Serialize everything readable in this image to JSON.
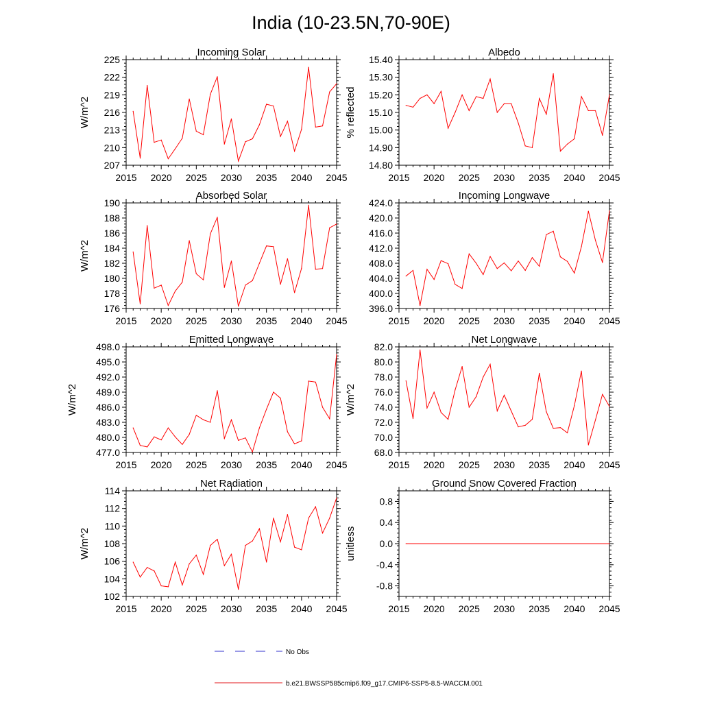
{
  "figure": {
    "title": "India (10-23.5N,70-90E)"
  },
  "legend": {
    "items": [
      {
        "label": "No Obs",
        "color": "#3333cc",
        "dash": true
      },
      {
        "label": "b.e21.BWSSP585cmip6.f09_g17.CMIP6-SSP5-8.5-WACCM.001",
        "color": "#e31a1c",
        "dash": false
      }
    ]
  },
  "colors": {
    "series": "#ff0000",
    "obs": "#3333cc"
  },
  "chart_data": [
    {
      "type": "line",
      "title": "Incoming Solar",
      "ylabel": "W/m^2",
      "xlim": [
        2015,
        2045
      ],
      "ylim": [
        207,
        225
      ],
      "xticks": [
        "2015",
        "2020",
        "2025",
        "2030",
        "2035",
        "2040",
        "2045"
      ],
      "yticks": [
        "207",
        "210",
        "213",
        "216",
        "219",
        "222",
        "225"
      ],
      "x": [
        2016,
        2017,
        2018,
        2019,
        2020,
        2021,
        2022,
        2023,
        2024,
        2025,
        2026,
        2027,
        2028,
        2029,
        2030,
        2031,
        2032,
        2033,
        2034,
        2035,
        2036,
        2037,
        2038,
        2039,
        2040,
        2041,
        2042,
        2043,
        2044,
        2045
      ],
      "series": [
        {
          "name": "b.e21.BWSSP585cmip6.f09_g17.CMIP6-SSP5-8.5-WACCM.001",
          "values": [
            216.2,
            208.2,
            220.6,
            210.9,
            211.3,
            208.1,
            209.8,
            211.6,
            218.3,
            212.8,
            212.2,
            219.1,
            222.1,
            210.6,
            214.9,
            207.7,
            211.0,
            211.5,
            213.9,
            217.4,
            217.1,
            211.9,
            214.5,
            209.4,
            213.1,
            223.7,
            213.5,
            213.7,
            219.5,
            220.9
          ]
        }
      ]
    },
    {
      "type": "line",
      "title": "Albedo",
      "ylabel": "% reflected",
      "xlim": [
        2015,
        2045
      ],
      "ylim": [
        14.8,
        15.4
      ],
      "xticks": [
        "2015",
        "2020",
        "2025",
        "2030",
        "2035",
        "2040",
        "2045"
      ],
      "yticks": [
        "14.80",
        "14.90",
        "15.00",
        "15.10",
        "15.20",
        "15.30",
        "15.40"
      ],
      "x": [
        2016,
        2017,
        2018,
        2019,
        2020,
        2021,
        2022,
        2023,
        2024,
        2025,
        2026,
        2027,
        2028,
        2029,
        2030,
        2031,
        2032,
        2033,
        2034,
        2035,
        2036,
        2037,
        2038,
        2039,
        2040,
        2041,
        2042,
        2043,
        2044,
        2045
      ],
      "series": [
        {
          "name": "b.e21.BWSSP585cmip6.f09_g17.CMIP6-SSP5-8.5-WACCM.001",
          "values": [
            15.14,
            15.13,
            15.18,
            15.2,
            15.15,
            15.22,
            15.01,
            15.1,
            15.2,
            15.11,
            15.19,
            15.18,
            15.29,
            15.1,
            15.15,
            15.15,
            15.04,
            14.91,
            14.9,
            15.18,
            15.09,
            15.32,
            14.88,
            14.92,
            14.95,
            15.19,
            15.11,
            15.11,
            14.97,
            15.2
          ]
        }
      ]
    },
    {
      "type": "line",
      "title": "Absorbed Solar",
      "ylabel": "W/m^2",
      "xlim": [
        2015,
        2045
      ],
      "ylim": [
        176,
        190
      ],
      "xticks": [
        "2015",
        "2020",
        "2025",
        "2030",
        "2035",
        "2040",
        "2045"
      ],
      "yticks": [
        "176",
        "178",
        "180",
        "182",
        "184",
        "186",
        "188",
        "190"
      ],
      "x": [
        2016,
        2017,
        2018,
        2019,
        2020,
        2021,
        2022,
        2023,
        2024,
        2025,
        2026,
        2027,
        2028,
        2029,
        2030,
        2031,
        2032,
        2033,
        2034,
        2035,
        2036,
        2037,
        2038,
        2039,
        2040,
        2041,
        2042,
        2043,
        2044,
        2045
      ],
      "series": [
        {
          "name": "b.e21.BWSSP585cmip6.f09_g17.CMIP6-SSP5-8.5-WACCM.001",
          "values": [
            183.5,
            176.6,
            187.0,
            178.7,
            179.1,
            176.4,
            178.3,
            179.5,
            185.0,
            180.6,
            179.8,
            185.9,
            188.1,
            178.8,
            182.3,
            176.3,
            179.1,
            179.7,
            182.0,
            184.3,
            184.2,
            179.2,
            182.6,
            178.1,
            181.3,
            189.7,
            181.2,
            181.3,
            186.7,
            187.2
          ]
        }
      ]
    },
    {
      "type": "line",
      "title": "Incoming Longwave",
      "ylabel": "",
      "xlim": [
        2015,
        2045
      ],
      "ylim": [
        396.0,
        424.0
      ],
      "xticks": [
        "2015",
        "2020",
        "2025",
        "2030",
        "2035",
        "2040",
        "2045"
      ],
      "yticks": [
        "396.0",
        "400.0",
        "404.0",
        "408.0",
        "412.0",
        "416.0",
        "420.0",
        "424.0"
      ],
      "x": [
        2016,
        2017,
        2018,
        2019,
        2020,
        2021,
        2022,
        2023,
        2024,
        2025,
        2026,
        2027,
        2028,
        2029,
        2030,
        2031,
        2032,
        2033,
        2034,
        2035,
        2036,
        2037,
        2038,
        2039,
        2040,
        2041,
        2042,
        2043,
        2044,
        2045
      ],
      "series": [
        {
          "name": "b.e21.BWSSP585cmip6.f09_g17.CMIP6-SSP5-8.5-WACCM.001",
          "values": [
            404.6,
            406.1,
            396.8,
            406.4,
            403.7,
            408.7,
            407.9,
            402.4,
            401.3,
            410.5,
            408.0,
            405.0,
            409.8,
            406.6,
            408.1,
            406.0,
            408.6,
            406.1,
            409.5,
            407.2,
            415.6,
            416.5,
            409.7,
            408.5,
            405.4,
            412.4,
            421.8,
            414.1,
            408.2,
            421.9
          ]
        }
      ]
    },
    {
      "type": "line",
      "title": "Emitted Longwave",
      "ylabel": "W/m^2",
      "xlim": [
        2015,
        2045
      ],
      "ylim": [
        477.0,
        498.0
      ],
      "xticks": [
        "2015",
        "2020",
        "2025",
        "2030",
        "2035",
        "2040",
        "2045"
      ],
      "yticks": [
        "477.0",
        "480.0",
        "483.0",
        "486.0",
        "489.0",
        "492.0",
        "495.0",
        "498.0"
      ],
      "x": [
        2016,
        2017,
        2018,
        2019,
        2020,
        2021,
        2022,
        2023,
        2024,
        2025,
        2026,
        2027,
        2028,
        2029,
        2030,
        2031,
        2032,
        2033,
        2034,
        2035,
        2036,
        2037,
        2038,
        2039,
        2040,
        2041,
        2042,
        2043,
        2044,
        2045
      ],
      "series": [
        {
          "name": "b.e21.BWSSP585cmip6.f09_g17.CMIP6-SSP5-8.5-WACCM.001",
          "values": [
            481.9,
            478.4,
            478.1,
            480.1,
            479.5,
            481.9,
            480.1,
            478.6,
            480.6,
            484.4,
            483.5,
            483.0,
            489.3,
            479.8,
            483.5,
            479.4,
            479.9,
            477.1,
            481.9,
            485.6,
            489.0,
            487.8,
            481.1,
            478.7,
            479.3,
            491.2,
            491.0,
            486.0,
            483.7,
            496.5
          ]
        }
      ]
    },
    {
      "type": "line",
      "title": "Net Longwave",
      "ylabel": "W/m^2",
      "xlim": [
        2015,
        2045
      ],
      "ylim": [
        68.0,
        82.0
      ],
      "xticks": [
        "2015",
        "2020",
        "2025",
        "2030",
        "2035",
        "2040",
        "2045"
      ],
      "yticks": [
        "68.0",
        "70.0",
        "72.0",
        "74.0",
        "76.0",
        "78.0",
        "80.0",
        "82.0"
      ],
      "x": [
        2016,
        2017,
        2018,
        2019,
        2020,
        2021,
        2022,
        2023,
        2024,
        2025,
        2026,
        2027,
        2028,
        2029,
        2030,
        2031,
        2032,
        2033,
        2034,
        2035,
        2036,
        2037,
        2038,
        2039,
        2040,
        2041,
        2042,
        2043,
        2044,
        2045
      ],
      "series": [
        {
          "name": "b.e21.BWSSP585cmip6.f09_g17.CMIP6-SSP5-8.5-WACCM.001",
          "values": [
            77.5,
            72.5,
            81.6,
            73.9,
            76.0,
            73.3,
            72.4,
            76.3,
            79.4,
            74.0,
            75.4,
            78.0,
            79.7,
            73.5,
            75.6,
            73.5,
            71.4,
            71.6,
            72.4,
            78.5,
            73.4,
            71.2,
            71.3,
            70.6,
            74.2,
            78.8,
            69.0,
            72.3,
            75.7,
            74.1
          ]
        }
      ]
    },
    {
      "type": "line",
      "title": "Net Radiation",
      "ylabel": "W/m^2",
      "xlim": [
        2015,
        2045
      ],
      "ylim": [
        102,
        114
      ],
      "xticks": [
        "2015",
        "2020",
        "2025",
        "2030",
        "2035",
        "2040",
        "2045"
      ],
      "yticks": [
        "102",
        "104",
        "106",
        "108",
        "110",
        "112",
        "114"
      ],
      "x": [
        2016,
        2017,
        2018,
        2019,
        2020,
        2021,
        2022,
        2023,
        2024,
        2025,
        2026,
        2027,
        2028,
        2029,
        2030,
        2031,
        2032,
        2033,
        2034,
        2035,
        2036,
        2037,
        2038,
        2039,
        2040,
        2041,
        2042,
        2043,
        2044,
        2045
      ],
      "series": [
        {
          "name": "b.e21.BWSSP585cmip6.f09_g17.CMIP6-SSP5-8.5-WACCM.001",
          "values": [
            105.9,
            104.2,
            105.3,
            104.9,
            103.2,
            103.1,
            105.9,
            103.3,
            105.7,
            106.7,
            104.5,
            107.8,
            108.5,
            105.5,
            106.8,
            102.8,
            107.8,
            108.3,
            109.7,
            105.9,
            110.9,
            108.2,
            111.3,
            107.6,
            107.3,
            110.9,
            112.2,
            109.2,
            110.9,
            113.2
          ]
        }
      ]
    },
    {
      "type": "line",
      "title": "Ground Snow Covered Fraction",
      "ylabel": "unitless",
      "xlim": [
        2015,
        2045
      ],
      "ylim": [
        -1.0,
        1.0
      ],
      "xticks": [
        "2015",
        "2020",
        "2025",
        "2030",
        "2035",
        "2040",
        "2045"
      ],
      "yticks": [
        "-0.8",
        "-0.4",
        "0.0",
        "0.4",
        "0.8"
      ],
      "ytickvals": [
        -0.8,
        -0.4,
        0.0,
        0.4,
        0.8
      ],
      "x": [
        2016,
        2045
      ],
      "series": [
        {
          "name": "b.e21.BWSSP585cmip6.f09_g17.CMIP6-SSP5-8.5-WACCM.001",
          "values": [
            0.0,
            0.0
          ]
        }
      ]
    }
  ]
}
